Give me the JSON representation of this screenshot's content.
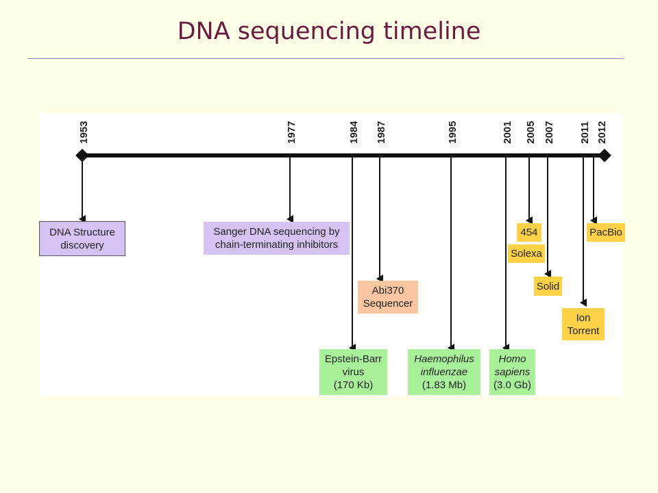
{
  "title": "DNA sequencing timeline",
  "years": [
    "1953",
    "1977",
    "1984",
    "1987",
    "1995",
    "2001",
    "2005",
    "2007",
    "2011",
    "2012"
  ],
  "events": {
    "dna_structure": {
      "line1": "DNA Structure",
      "line2": "discovery"
    },
    "sanger": {
      "line1": "Sanger DNA sequencing by",
      "line2": "chain-terminating inhibitors"
    },
    "abi370": {
      "line1": "Abi370",
      "line2": "Sequencer"
    },
    "epstein_barr": {
      "line1": "Epstein-Barr",
      "line2": "virus",
      "line3": "(170 Kb)"
    },
    "haemophilus": {
      "line1": "Haemophilus",
      "line2": "influenzae",
      "line3": "(1.83 Mb)"
    },
    "homo": {
      "line1": "Homo",
      "line2": "sapiens",
      "line3": "(3.0 Gb)"
    },
    "p454": {
      "label": "454"
    },
    "solexa": {
      "label": "Solexa"
    },
    "solid": {
      "label": "Solid"
    },
    "ion": {
      "line1": "Ion",
      "line2": "Torrent"
    },
    "pacbio": {
      "label": "PacBio"
    }
  },
  "colors": {
    "title": "#6b1a3f",
    "purple": "#d4c2f2",
    "orange": "#f8c6a0",
    "green": "#a9f09a",
    "yellow": "#ffd147",
    "background": "#ffffe8"
  }
}
